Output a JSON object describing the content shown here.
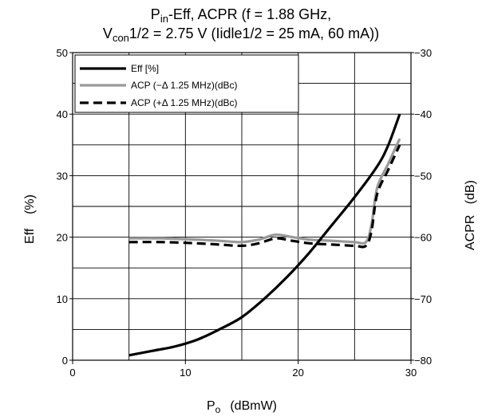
{
  "chart_data": {
    "type": "line",
    "title": {
      "line1": {
        "p": "P",
        "sub": "in",
        "rest": "-Eff, ACPR (f = 1.88 GHz,"
      },
      "line2": {
        "v": "V",
        "sub": "con",
        "rest": "1/2 = 2.75 V (Iidle1/2 = 25 mA, 60 mA))"
      }
    },
    "xlabel": {
      "main": "P",
      "sub": "o",
      "unit": "(dBmW)"
    },
    "ylabel_left": "Eff    (%)",
    "ylabel_right": "ACPR   (dB)",
    "xlim": [
      0,
      30
    ],
    "ylim_left": [
      0,
      50
    ],
    "ylim_right": [
      -80,
      -30
    ],
    "x_ticks": [
      "0",
      "10",
      "20",
      "30"
    ],
    "y_left_ticks": [
      "0",
      "10",
      "20",
      "30",
      "40",
      "50"
    ],
    "y_right_ticks": [
      "−80",
      "−70",
      "−60",
      "−50",
      "−40",
      "−30"
    ],
    "grid": true,
    "legend_position": "top-left",
    "series": [
      {
        "name": "Eff [%]",
        "axis": "left",
        "color": "#000000",
        "style": "solid",
        "x": [
          5,
          7,
          9,
          11,
          13,
          15,
          17,
          19,
          21,
          23,
          25,
          27,
          28,
          29
        ],
        "y": [
          0.8,
          1.5,
          2.2,
          3.3,
          5,
          7,
          10,
          13.5,
          17.5,
          22,
          26.5,
          31.5,
          35,
          40
        ]
      },
      {
        "name": "ACP (−Δ 1.25 MHz)(dBc)",
        "axis": "right",
        "color": "#999999",
        "style": "solid",
        "x": [
          5,
          8,
          11,
          13,
          15,
          16.5,
          18,
          19.5,
          21,
          23,
          25,
          26,
          26.5,
          27,
          28,
          29
        ],
        "y": [
          -60.2,
          -60.2,
          -60.4,
          -60.6,
          -60.8,
          -60.4,
          -59.6,
          -60.0,
          -60.4,
          -60.6,
          -60.8,
          -60.8,
          -58,
          -52,
          -48,
          -44
        ]
      },
      {
        "name": "ACP (+Δ 1.25 MHz)(dBc)",
        "axis": "right",
        "color": "#000000",
        "style": "dashed",
        "x": [
          5,
          8,
          11,
          13,
          15,
          16.5,
          18,
          19.5,
          21,
          23,
          25,
          26,
          26.5,
          27,
          28,
          29
        ],
        "y": [
          -60.8,
          -60.8,
          -61.0,
          -61.2,
          -61.4,
          -61.0,
          -60.2,
          -60.6,
          -61.0,
          -61.2,
          -61.4,
          -61.4,
          -59,
          -53,
          -49,
          -45
        ]
      }
    ]
  }
}
